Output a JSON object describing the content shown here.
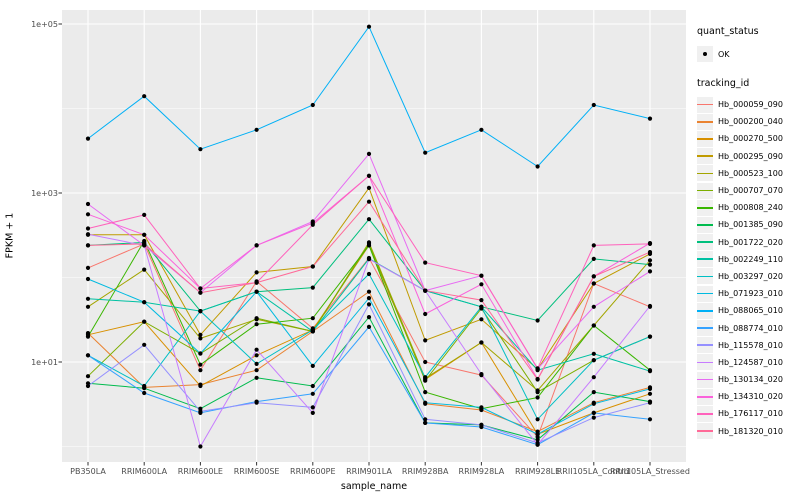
{
  "colors": {
    "background": "#FFFFFF",
    "panel_bg": "#EBEBEB",
    "grid": "#FFFFFF",
    "axis_text": "#4D4D4D",
    "tick": "#333333",
    "point": "#000000",
    "legend_key_bg": "#F0F0F0"
  },
  "chart_data": {
    "type": "line",
    "title": "",
    "xlabel": "sample_name",
    "ylabel": "FPKM + 1",
    "y_scale": "log10",
    "grid": true,
    "legend_position": "right",
    "x_categories": [
      "PB350LA",
      "RRIM600LA",
      "RRIM600LE",
      "RRIM600SE",
      "RRIM600PE",
      "RRIM901LA",
      "RRIM928BA",
      "RRIM928LA",
      "RRIM928LE",
      "RRII105LA_Control",
      "RRII105LA_Stressed"
    ],
    "yticks": [
      {
        "label": "1e+01",
        "value": 10
      },
      {
        "label": "1e+03",
        "value": 1000
      },
      {
        "label": "1e+05",
        "value": 100000
      }
    ],
    "y_minor": [
      1,
      100,
      10000
    ],
    "ylim": [
      0.6,
      150000
    ],
    "legend": {
      "quant_status_title": "quant_status",
      "ok_label": "OK",
      "tracking_title": "tracking_id"
    },
    "quant_status": "OK",
    "point_shape": "filled-circle",
    "series": [
      {
        "name": "Hb_000059_090",
        "color": "#F8766D",
        "values": [
          130,
          250,
          8,
          90,
          25,
          170,
          10,
          7,
          1.3,
          85,
          45
        ]
      },
      {
        "name": "Hb_000200_040",
        "color": "#EA8331",
        "values": [
          22,
          5,
          5.4,
          8,
          23,
          68,
          3.2,
          2.7,
          1.5,
          3.3,
          5
        ]
      },
      {
        "name": "Hb_000270_500",
        "color": "#D89000",
        "values": [
          21,
          30,
          5.2,
          12,
          24,
          240,
          6.2,
          17,
          1.4,
          2.5,
          4.2
        ]
      },
      {
        "name": "Hb_000295_090",
        "color": "#C09B00",
        "values": [
          320,
          320,
          21,
          115,
          135,
          1150,
          18,
          32,
          8.2,
          85,
          190
        ]
      },
      {
        "name": "Hb_000523_100",
        "color": "#A3A500",
        "values": [
          45,
          124,
          19,
          32,
          23,
          260,
          6.4,
          17,
          4.6,
          27,
          160
        ]
      },
      {
        "name": "Hb_000707_070",
        "color": "#7CAE00",
        "values": [
          6.8,
          30,
          12.6,
          33,
          23,
          250,
          6,
          43,
          4.4,
          10.5,
          20
        ]
      },
      {
        "name": "Hb_000808_240",
        "color": "#39B600",
        "values": [
          20,
          270,
          9.3,
          28,
          33,
          240,
          4.4,
          2.8,
          3.8,
          27,
          8
        ]
      },
      {
        "name": "Hb_001385_090",
        "color": "#00BB4E",
        "values": [
          5.6,
          4.9,
          2.8,
          6.5,
          5.2,
          34,
          1.9,
          1.8,
          1.2,
          4.4,
          3.4
        ]
      },
      {
        "name": "Hb_001722_020",
        "color": "#00BF7D",
        "values": [
          240,
          260,
          40,
          68,
          76,
          490,
          70,
          45,
          31,
          166,
          142
        ]
      },
      {
        "name": "Hb_002249_110",
        "color": "#00C1A3",
        "values": [
          56,
          51,
          40,
          68,
          23,
          167,
          70,
          45,
          8,
          12.5,
          7.8
        ]
      },
      {
        "name": "Hb_003297_020",
        "color": "#00BFC4",
        "values": [
          12,
          5.2,
          40,
          9.5,
          24,
          110,
          6.6,
          45,
          2.1,
          10.5,
          20
        ]
      },
      {
        "name": "Hb_071923_010",
        "color": "#00BAE0",
        "values": [
          96,
          51,
          12.6,
          68,
          9,
          57,
          3.3,
          2.9,
          1.4,
          3.2,
          4.8
        ]
      },
      {
        "name": "Hb_088065_010",
        "color": "#00B0F6",
        "values": [
          4400,
          14000,
          3300,
          5600,
          11000,
          93000,
          3000,
          5600,
          2060,
          11000,
          7600
        ]
      },
      {
        "name": "Hb_088774_010",
        "color": "#35A2FF",
        "values": [
          12,
          4.3,
          2.5,
          3.4,
          4.2,
          26,
          1.9,
          1.7,
          1.05,
          2.5,
          2.1
        ]
      },
      {
        "name": "Hb_115578_010",
        "color": "#9590FF",
        "values": [
          5.2,
          16,
          2.6,
          3.3,
          2.9,
          48,
          2.1,
          1.8,
          1.1,
          2.2,
          3.3
        ]
      },
      {
        "name": "Hb_124587_010",
        "color": "#C77CFF",
        "values": [
          325,
          240,
          1.0,
          14,
          2.5,
          165,
          70,
          7.2,
          1.05,
          6.6,
          46
        ]
      },
      {
        "name": "Hb_130134_020",
        "color": "#E76BF3",
        "values": [
          740,
          240,
          66,
          240,
          460,
          2900,
          70,
          105,
          8.3,
          45,
          118
        ]
      },
      {
        "name": "Hb_134310_020",
        "color": "#FA62DB",
        "values": [
          560,
          320,
          74,
          240,
          440,
          1600,
          37,
          83,
          6.3,
          103,
          255
        ]
      },
      {
        "name": "Hb_176117_010",
        "color": "#FF62BC",
        "values": [
          380,
          550,
          74,
          87,
          420,
          1600,
          150,
          105,
          8.4,
          240,
          250
        ]
      },
      {
        "name": "Hb_181320_010",
        "color": "#FF6A98",
        "values": [
          240,
          250,
          66,
          87,
          135,
          790,
          70,
          54,
          6.2,
          103,
          200
        ]
      }
    ]
  }
}
